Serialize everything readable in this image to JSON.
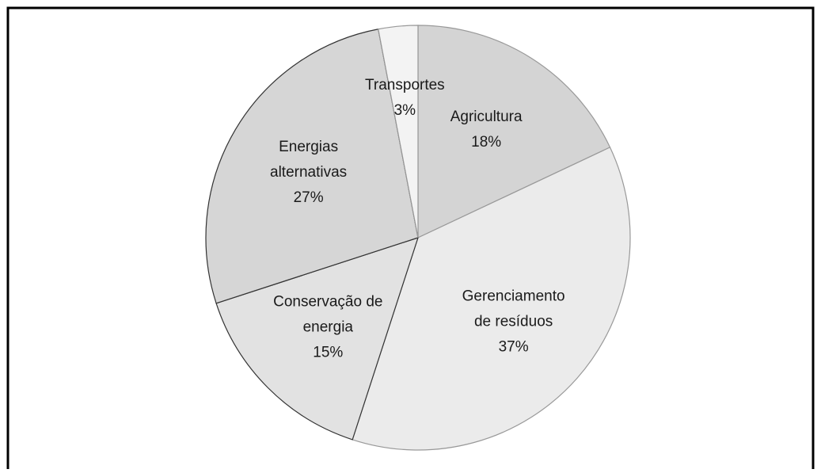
{
  "chart_data": {
    "type": "pie",
    "categories": [
      "Agricultura",
      "Gerenciamento de resíduos",
      "Conservação de energia",
      "Energias alternativas",
      "Transportes"
    ],
    "values": [
      18,
      37,
      15,
      27,
      3
    ],
    "value_labels": [
      "18%",
      "37%",
      "15%",
      "27%",
      "3%"
    ],
    "colors": [
      "#d4d4d4",
      "#ebebeb",
      "#e2e2e2",
      "#d6d6d6",
      "#f3f3f3"
    ]
  }
}
